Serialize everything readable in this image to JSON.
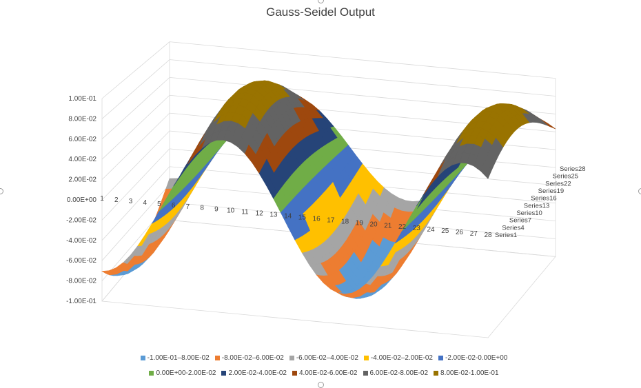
{
  "chart_data": {
    "type": "surface",
    "title": "Gauss-Seidel Output",
    "z_ticks": [
      "1.00E-01",
      "8.00E-02",
      "6.00E-02",
      "4.00E-02",
      "2.00E-02",
      "0.00E+00",
      "-2.00E-02",
      "-4.00E-02",
      "-6.00E-02",
      "-8.00E-02",
      "-1.00E-01"
    ],
    "zlim": [
      -0.1,
      0.1
    ],
    "x_categories": [
      "1",
      "2",
      "3",
      "4",
      "5",
      "6",
      "7",
      "8",
      "9",
      "10",
      "11",
      "12",
      "13",
      "14",
      "15",
      "16",
      "17",
      "18",
      "19",
      "20",
      "21",
      "22",
      "23",
      "24",
      "25",
      "26",
      "27",
      "28"
    ],
    "series": [
      "Series1",
      "Series4",
      "Series7",
      "Series10",
      "Series13",
      "Series16",
      "Series19",
      "Series22",
      "Series25",
      "Series28"
    ],
    "grid": true,
    "legend_position": "bottom",
    "legend": [
      {
        "label": "-1.00E-01–8.00E-02",
        "color": "#5B9BD5"
      },
      {
        "label": "-8.00E-02–6.00E-02",
        "color": "#ED7D31"
      },
      {
        "label": "-6.00E-02–4.00E-02",
        "color": "#A5A5A5"
      },
      {
        "label": "-4.00E-02–2.00E-02",
        "color": "#FFC000"
      },
      {
        "label": "-2.00E-02-0.00E+00",
        "color": "#4472C4"
      },
      {
        "label": "0.00E+00-2.00E-02",
        "color": "#70AD47"
      },
      {
        "label": "2.00E-02-4.00E-02",
        "color": "#264478"
      },
      {
        "label": "4.00E-02-6.00E-02",
        "color": "#9E480E"
      },
      {
        "label": "6.00E-02-8.00E-02",
        "color": "#636363"
      },
      {
        "label": "8.00E-02-1.00E-01",
        "color": "#997300"
      }
    ]
  }
}
